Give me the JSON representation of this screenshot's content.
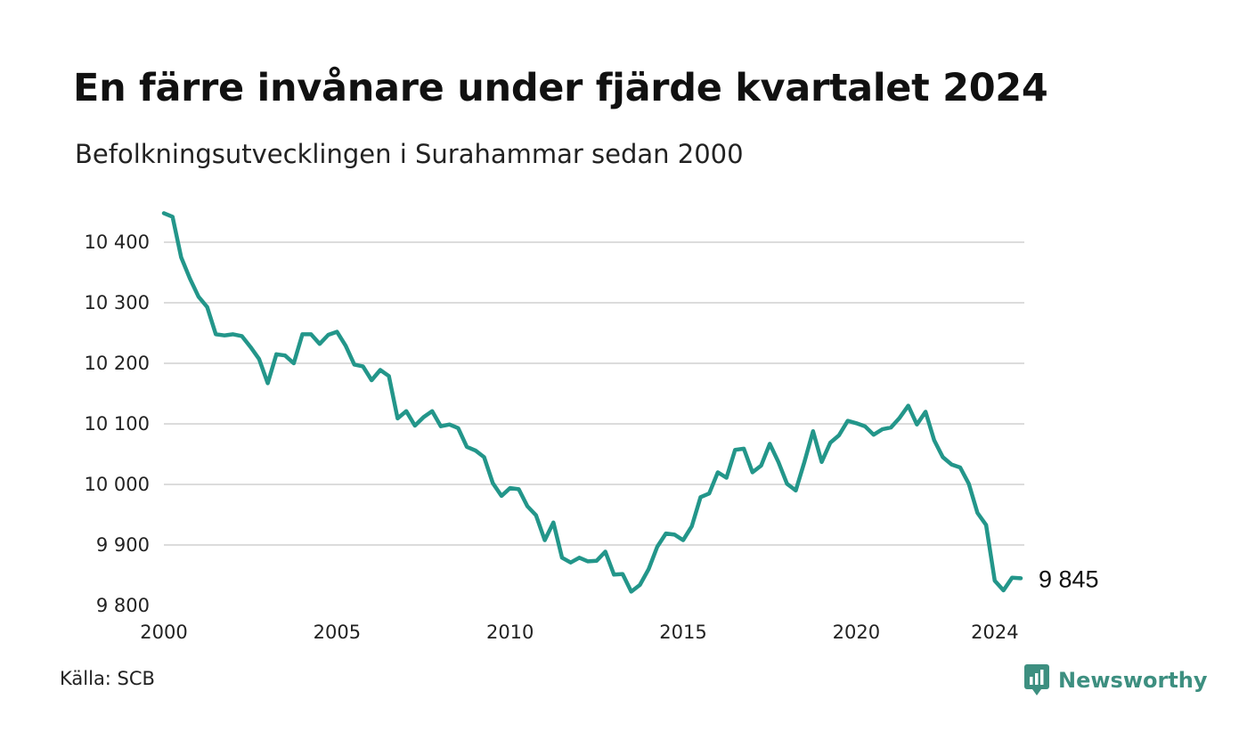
{
  "chart_data": {
    "type": "line",
    "title": "En färre invånare under fjärde kvartalet 2024",
    "subtitle": "Befolkningsutvecklingen i Surahammar sedan 2000",
    "source": "Källa: SCB",
    "brand": "Newsworthy",
    "ylim": [
      9800,
      10450
    ],
    "xlim": [
      2000,
      2025
    ],
    "yticks": [
      {
        "value": 9800,
        "label": "9 800"
      },
      {
        "value": 9900,
        "label": "9 900"
      },
      {
        "value": 10000,
        "label": "10 000"
      },
      {
        "value": 10100,
        "label": "10 100"
      },
      {
        "value": 10200,
        "label": "10 200"
      },
      {
        "value": 10300,
        "label": "10 300"
      },
      {
        "value": 10400,
        "label": "10 400"
      }
    ],
    "xticks": [
      {
        "value": 2000,
        "label": "2000"
      },
      {
        "value": 2005,
        "label": "2005"
      },
      {
        "value": 2010,
        "label": "2010"
      },
      {
        "value": 2015,
        "label": "2015"
      },
      {
        "value": 2020,
        "label": "2020"
      },
      {
        "value": 2024,
        "label": "2024"
      }
    ],
    "grid": true,
    "color": "#23968a",
    "end_label": "9 845",
    "series": [
      {
        "x": [
          "2000-Q1",
          "2000-Q2",
          "2000-Q3",
          "2000-Q4",
          "2001-Q1",
          "2001-Q2",
          "2001-Q3",
          "2001-Q4",
          "2002-Q1",
          "2002-Q2",
          "2002-Q3",
          "2002-Q4",
          "2003-Q1",
          "2003-Q2",
          "2003-Q3",
          "2003-Q4",
          "2004-Q1",
          "2004-Q2",
          "2004-Q3",
          "2004-Q4",
          "2005-Q1",
          "2005-Q2",
          "2005-Q3",
          "2005-Q4",
          "2006-Q1",
          "2006-Q2",
          "2006-Q3",
          "2006-Q4",
          "2007-Q1",
          "2007-Q2",
          "2007-Q3",
          "2007-Q4",
          "2008-Q1",
          "2008-Q2",
          "2008-Q3",
          "2008-Q4",
          "2009-Q1",
          "2009-Q2",
          "2009-Q3",
          "2009-Q4",
          "2010-Q1",
          "2010-Q2",
          "2010-Q3",
          "2010-Q4",
          "2011-Q1",
          "2011-Q2",
          "2011-Q3",
          "2011-Q4",
          "2012-Q1",
          "2012-Q2",
          "2012-Q3",
          "2012-Q4",
          "2013-Q1",
          "2013-Q2",
          "2013-Q3",
          "2013-Q4",
          "2014-Q1",
          "2014-Q2",
          "2014-Q3",
          "2014-Q4",
          "2015-Q1",
          "2015-Q2",
          "2015-Q3",
          "2015-Q4",
          "2016-Q1",
          "2016-Q2",
          "2016-Q3",
          "2016-Q4",
          "2017-Q1",
          "2017-Q2",
          "2017-Q3",
          "2017-Q4",
          "2018-Q1",
          "2018-Q2",
          "2018-Q3",
          "2018-Q4",
          "2019-Q1",
          "2019-Q2",
          "2019-Q3",
          "2019-Q4",
          "2020-Q1",
          "2020-Q2",
          "2020-Q3",
          "2020-Q4",
          "2021-Q1",
          "2021-Q2",
          "2021-Q3",
          "2021-Q4",
          "2022-Q1",
          "2022-Q2",
          "2022-Q3",
          "2022-Q4",
          "2023-Q1",
          "2023-Q2",
          "2023-Q3",
          "2023-Q4",
          "2024-Q1",
          "2024-Q2",
          "2024-Q3",
          "2024-Q4"
        ],
        "values": [
          10448,
          10442,
          10375,
          10340,
          10310,
          10293,
          10248,
          10246,
          10248,
          10245,
          10227,
          10207,
          10167,
          10215,
          10213,
          10200,
          10248,
          10248,
          10232,
          10247,
          10252,
          10229,
          10198,
          10195,
          10172,
          10189,
          10179,
          10109,
          10121,
          10097,
          10111,
          10121,
          10096,
          10099,
          10093,
          10062,
          10056,
          10045,
          10002,
          9981,
          9994,
          9992,
          9964,
          9949,
          9908,
          9937,
          9879,
          9871,
          9879,
          9873,
          9874,
          9889,
          9851,
          9852,
          9823,
          9834,
          9860,
          9897,
          9919,
          9917,
          9908,
          9931,
          9979,
          9985,
          10020,
          10011,
          10057,
          10059,
          10020,
          10031,
          10067,
          10037,
          10001,
          9990,
          10037,
          10088,
          10037,
          10069,
          10081,
          10105,
          10101,
          10096,
          10082,
          10091,
          10094,
          10110,
          10130,
          10099,
          10120,
          10073,
          10045,
          10033,
          10028,
          10001,
          9953,
          9933,
          9841,
          9825,
          9846,
          9845
        ]
      }
    ]
  }
}
